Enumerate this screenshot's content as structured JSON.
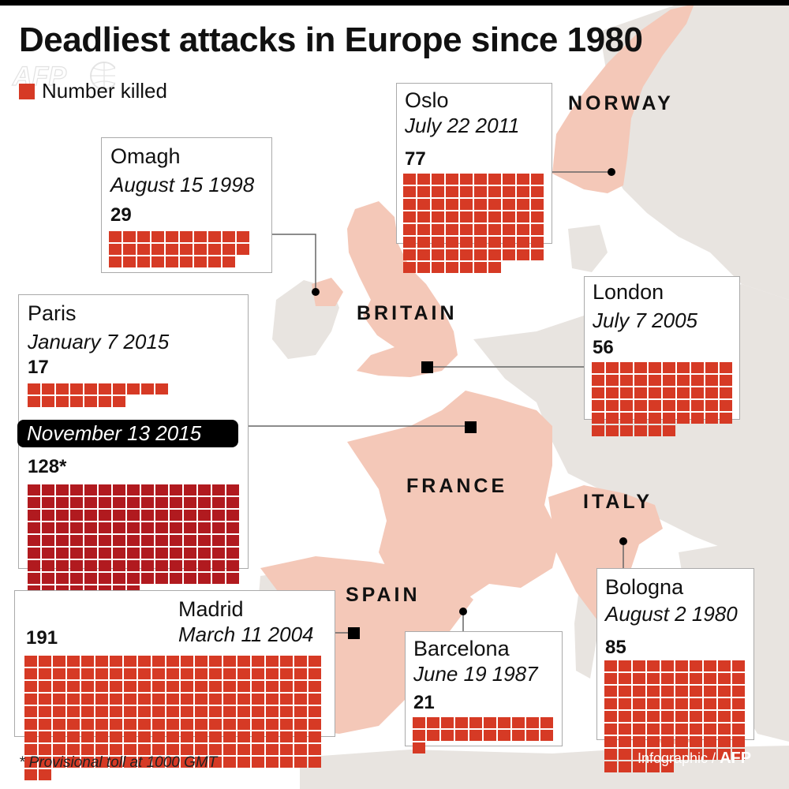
{
  "title": "Deadliest attacks in Europe since 1980",
  "logo": "AFP",
  "legend": {
    "label": "Number killed",
    "color": "#d63a25"
  },
  "countries": [
    "NORWAY",
    "BRITAIN",
    "FRANCE",
    "ITALY",
    "SPAIN"
  ],
  "attacks": [
    {
      "city": "Oslo",
      "date": "July 22 2011",
      "killed": "77",
      "count": 77
    },
    {
      "city": "Omagh",
      "date": "August 15 1998",
      "killed": "29",
      "count": 29
    },
    {
      "city": "London",
      "date": "July 7 2005",
      "killed": "56",
      "count": 56
    },
    {
      "city": "Paris",
      "date": "January 7 2015",
      "killed": "17",
      "count": 17,
      "date2": "November 13 2015",
      "killed2": "128*",
      "count2": 128
    },
    {
      "city": "Madrid",
      "date": "March 11 2004",
      "killed": "191",
      "count": 191
    },
    {
      "city": "Barcelona",
      "date": "June 19 1987",
      "killed": "21",
      "count": 21
    },
    {
      "city": "Bologna",
      "date": "August 2 1980",
      "killed": "85",
      "count": 85
    }
  ],
  "footnote": "* Provisional toll at 1000 GMT",
  "credit": {
    "prefix": "Infographic / ",
    "agency": "AFP"
  },
  "colors": {
    "land": "#f4c8b8",
    "neighbour": "#e8e4e0",
    "sea": "#ffffff",
    "square": "#d63a25",
    "square_dark": "#b11a1f"
  }
}
